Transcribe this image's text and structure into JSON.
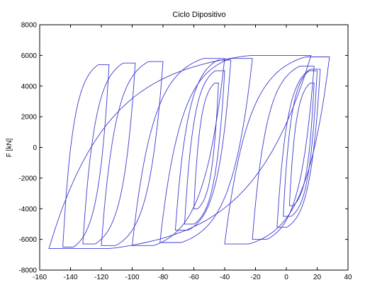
{
  "chart_data": {
    "type": "line",
    "title": "Ciclo Dipositivo",
    "xlabel": "",
    "ylabel": "F [kN]",
    "xlim": [
      -160,
      40
    ],
    "ylim": [
      -8000,
      8000
    ],
    "xticks": [
      -160,
      -140,
      -120,
      -100,
      -80,
      -60,
      -40,
      -20,
      0,
      20,
      40
    ],
    "yticks": [
      -8000,
      -6000,
      -4000,
      -2000,
      0,
      2000,
      4000,
      6000,
      8000
    ],
    "grid": false,
    "series": [
      {
        "color": "#3a3acf",
        "loops": [
          {
            "xmin": -154,
            "xmax": 16,
            "yneg": -6600,
            "ypos": 6000
          },
          {
            "xmin": -145,
            "xmax": -115,
            "yneg": -6500,
            "ypos": 5400
          },
          {
            "xmin": -132,
            "xmax": -98,
            "yneg": -6300,
            "ypos": 5500
          },
          {
            "xmin": -120,
            "xmax": -80,
            "yneg": -6400,
            "ypos": 5600
          },
          {
            "xmin": -100,
            "xmax": -40,
            "yneg": -6400,
            "ypos": 5800
          },
          {
            "xmin": -82,
            "xmax": -22,
            "yneg": -6200,
            "ypos": 5800
          },
          {
            "xmin": -72,
            "xmax": -36,
            "yneg": -5400,
            "ypos": 5700
          },
          {
            "xmin": -66,
            "xmax": -40,
            "yneg": -5000,
            "ypos": 5000
          },
          {
            "xmin": -60,
            "xmax": -44,
            "yneg": -4000,
            "ypos": 4200
          },
          {
            "xmin": -40,
            "xmax": 28,
            "yneg": -6300,
            "ypos": 5900
          },
          {
            "xmin": -22,
            "xmax": 18,
            "yneg": -6000,
            "ypos": 5300
          },
          {
            "xmin": -6,
            "xmax": 22,
            "yneg": -5200,
            "ypos": 5100
          },
          {
            "xmin": -2,
            "xmax": 20,
            "yneg": -4500,
            "ypos": 5000
          },
          {
            "xmin": 2,
            "xmax": 18,
            "yneg": -3800,
            "ypos": 4200
          }
        ]
      }
    ]
  }
}
